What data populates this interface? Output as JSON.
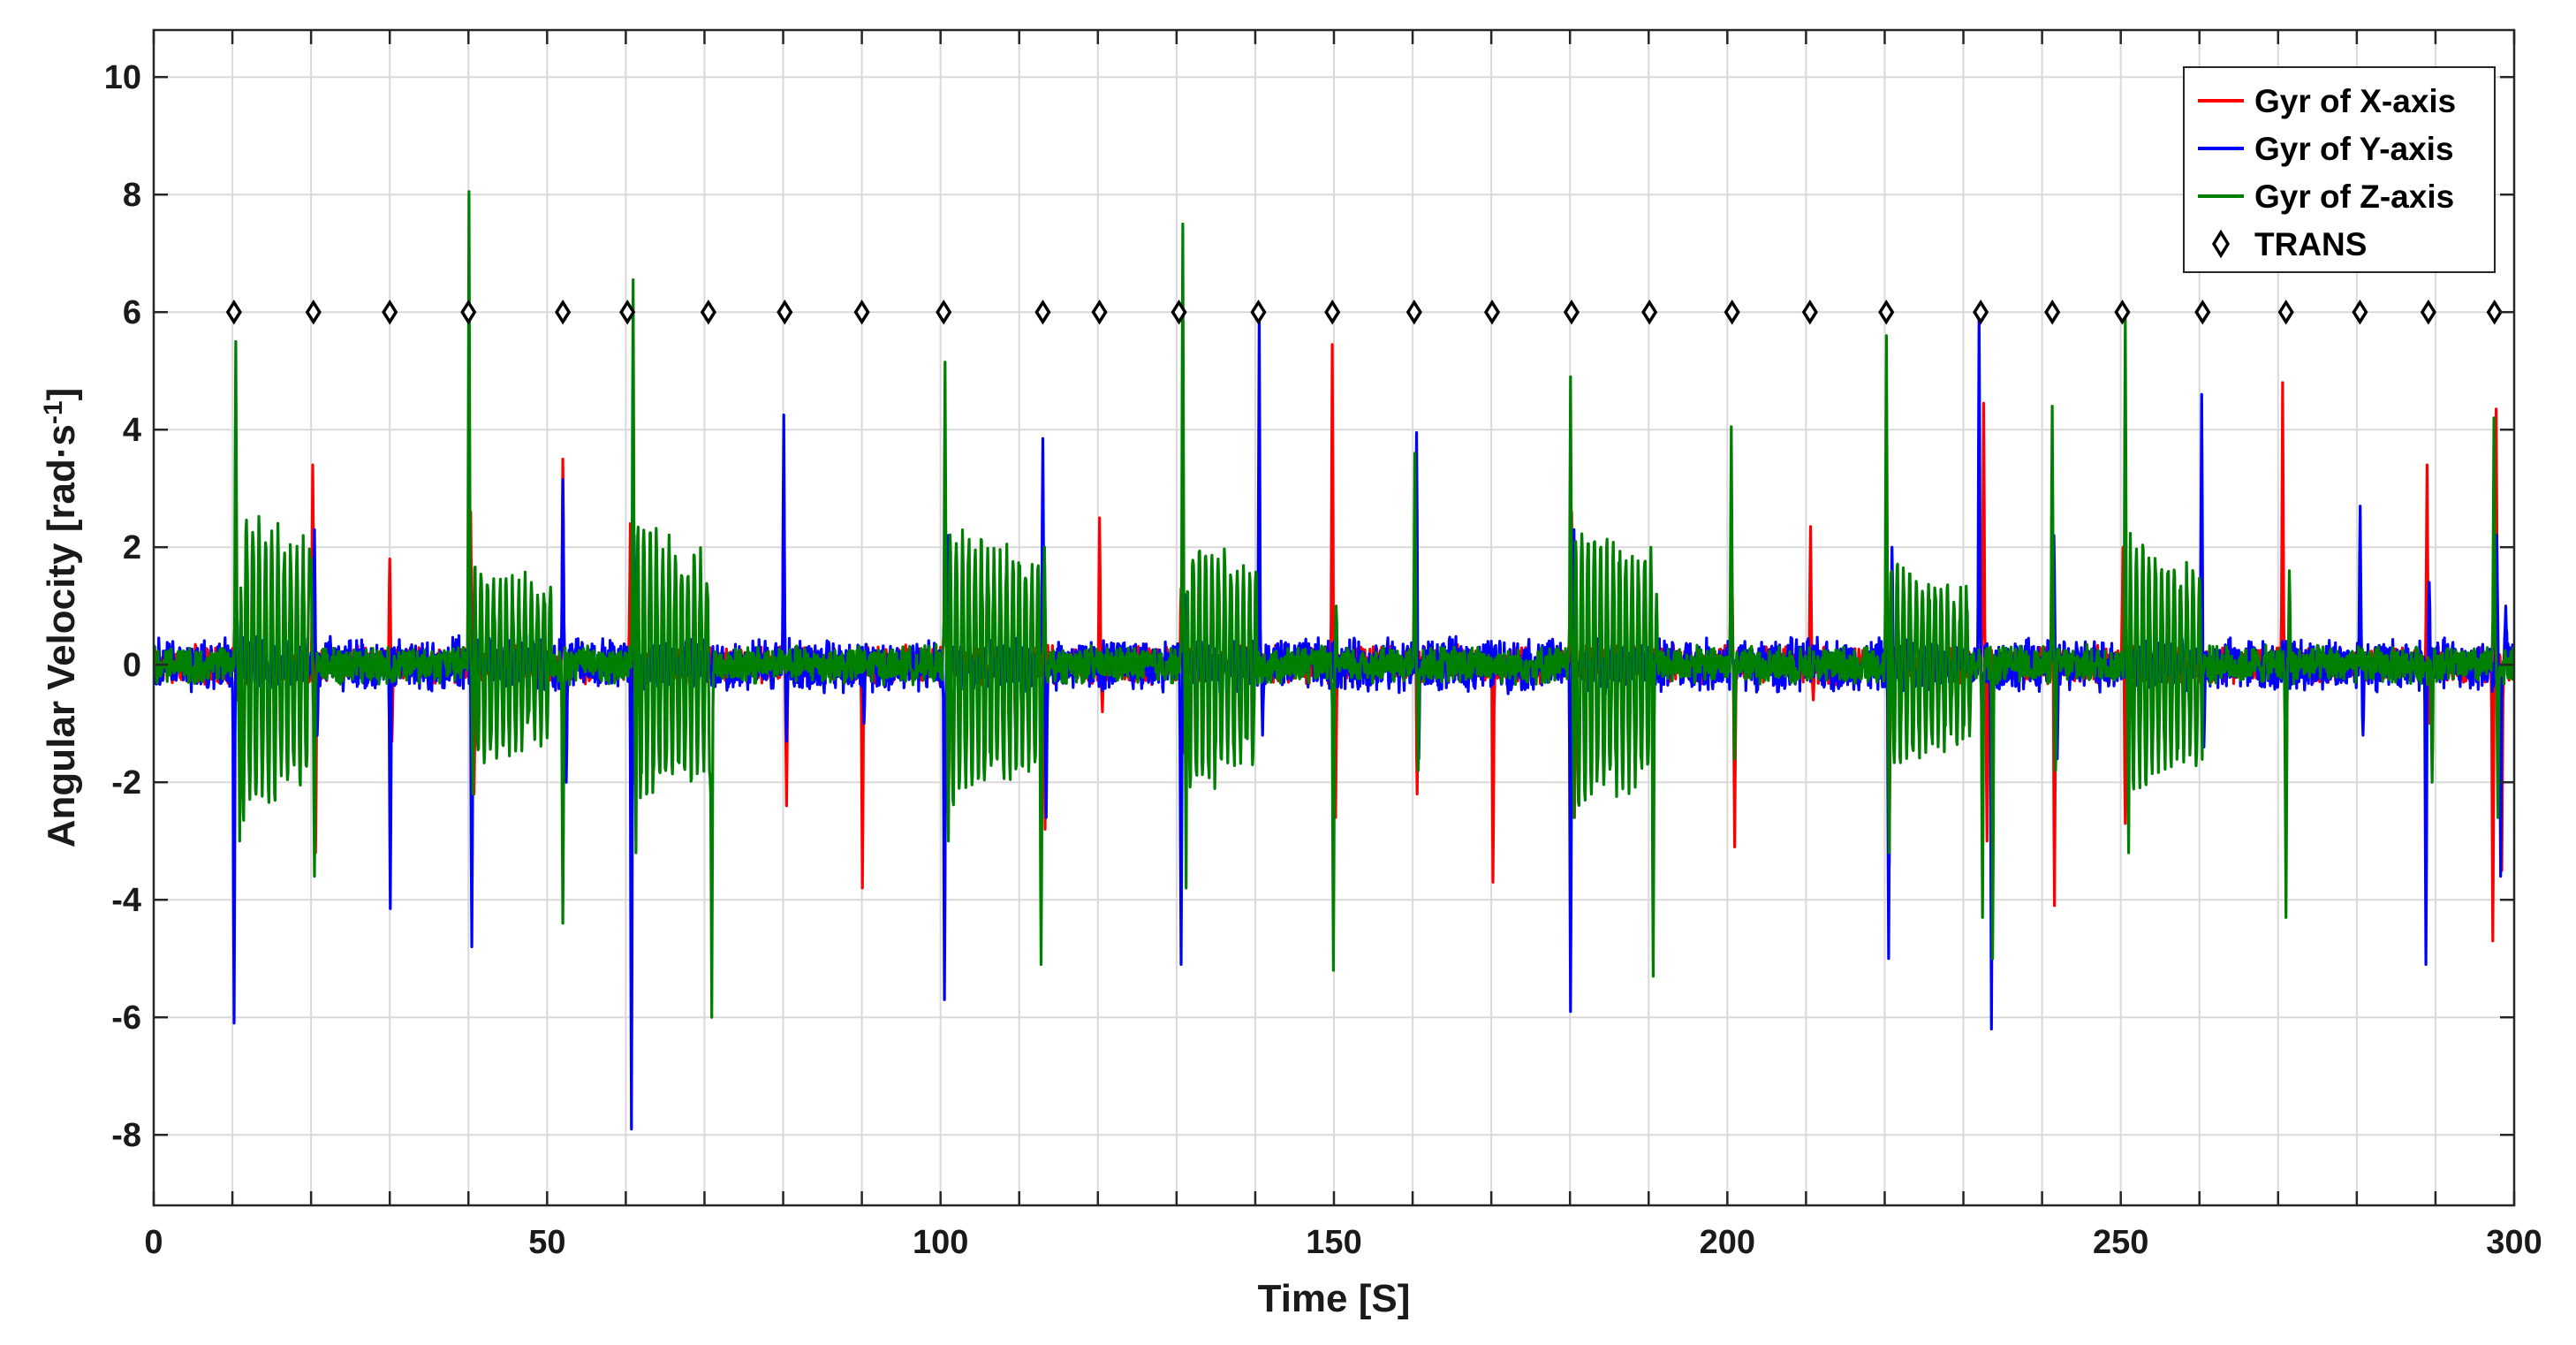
{
  "chart_data": {
    "type": "line",
    "title": "",
    "xlabel": "Time [S]",
    "ylabel": "Angular Velocity [rad·s",
    "ylabel_sup": "-1",
    "ylabel_suffix": "]",
    "xlim": [
      0,
      300
    ],
    "ylim": [
      -9.2,
      10.8
    ],
    "xticks": [
      0,
      10,
      20,
      30,
      40,
      50,
      60,
      70,
      80,
      90,
      100,
      110,
      120,
      130,
      140,
      150,
      160,
      170,
      180,
      190,
      200,
      210,
      220,
      230,
      240,
      250,
      260,
      270,
      280,
      290,
      300
    ],
    "xtick_labels": [
      "0",
      "50",
      "100",
      "150",
      "200",
      "250",
      "300"
    ],
    "xtick_label_values": [
      0,
      50,
      100,
      150,
      200,
      250,
      300
    ],
    "yticks": [
      -8,
      -6,
      -4,
      -2,
      0,
      2,
      4,
      6,
      8,
      10
    ],
    "ytick_labels": [
      "-8",
      "-6",
      "-4",
      "-2",
      "0",
      "2",
      "4",
      "6",
      "8",
      "10"
    ],
    "grid": true,
    "legend_position": "top-right",
    "series": [
      {
        "name": "Gyr of X-axis",
        "color": "#ff0000",
        "style": "line",
        "noise_amplitude": 0.35,
        "events": [
          {
            "x": 10.3,
            "y": 0.6
          },
          {
            "x": 10.6,
            "y": -0.6
          },
          {
            "x": 20.2,
            "y": 3.4
          },
          {
            "x": 20.6,
            "y": -3.2
          },
          {
            "x": 30.0,
            "y": 1.8
          },
          {
            "x": 30.3,
            "y": -1.3
          },
          {
            "x": 40.3,
            "y": 2.6
          },
          {
            "x": 40.7,
            "y": -2.2
          },
          {
            "x": 52.0,
            "y": 3.5
          },
          {
            "x": 52.4,
            "y": -1.6
          },
          {
            "x": 60.6,
            "y": 2.4
          },
          {
            "x": 61.0,
            "y": -2.0
          },
          {
            "x": 80.1,
            "y": 3.4
          },
          {
            "x": 80.4,
            "y": -2.4
          },
          {
            "x": 90.1,
            "y": -3.8
          },
          {
            "x": 100.6,
            "y": 3.0
          },
          {
            "x": 101.0,
            "y": -2.6
          },
          {
            "x": 113.0,
            "y": 2.1
          },
          {
            "x": 113.3,
            "y": -2.8
          },
          {
            "x": 120.2,
            "y": 2.5
          },
          {
            "x": 120.6,
            "y": -0.8
          },
          {
            "x": 130.6,
            "y": 1.3
          },
          {
            "x": 131.0,
            "y": -1.5
          },
          {
            "x": 149.8,
            "y": 5.45
          },
          {
            "x": 150.2,
            "y": -2.6
          },
          {
            "x": 160.3,
            "y": 1.8
          },
          {
            "x": 160.6,
            "y": -2.2
          },
          {
            "x": 170.2,
            "y": -3.7
          },
          {
            "x": 180.2,
            "y": 2.6
          },
          {
            "x": 180.6,
            "y": -2.6
          },
          {
            "x": 200.6,
            "y": 1.6
          },
          {
            "x": 200.9,
            "y": -3.1
          },
          {
            "x": 210.6,
            "y": 2.35
          },
          {
            "x": 210.9,
            "y": -0.6
          },
          {
            "x": 220.3,
            "y": 2.4
          },
          {
            "x": 220.6,
            "y": -3.4
          },
          {
            "x": 232.6,
            "y": 4.45
          },
          {
            "x": 233.0,
            "y": -3.0
          },
          {
            "x": 241.3,
            "y": 3.6
          },
          {
            "x": 241.6,
            "y": -4.1
          },
          {
            "x": 250.3,
            "y": 2.0
          },
          {
            "x": 250.6,
            "y": -2.7
          },
          {
            "x": 270.6,
            "y": 4.8
          },
          {
            "x": 271.0,
            "y": -2.6
          },
          {
            "x": 288.9,
            "y": 3.4
          },
          {
            "x": 289.3,
            "y": -1.0
          },
          {
            "x": 297.3,
            "y": -4.7
          },
          {
            "x": 297.7,
            "y": 4.35
          },
          {
            "x": 298.4,
            "y": -3.5
          }
        ]
      },
      {
        "name": "Gyr of Y-axis",
        "color": "#0000ff",
        "style": "line",
        "noise_amplitude": 0.5,
        "events": [
          {
            "x": 10.2,
            "y": -6.1
          },
          {
            "x": 10.6,
            "y": 0.9
          },
          {
            "x": 20.4,
            "y": 2.3
          },
          {
            "x": 20.8,
            "y": -1.2
          },
          {
            "x": 30.1,
            "y": -4.15
          },
          {
            "x": 40.4,
            "y": -4.8
          },
          {
            "x": 40.8,
            "y": 1.6
          },
          {
            "x": 52.0,
            "y": 3.15
          },
          {
            "x": 52.4,
            "y": -2.0
          },
          {
            "x": 60.7,
            "y": -7.9
          },
          {
            "x": 61.1,
            "y": 2.2
          },
          {
            "x": 80.1,
            "y": 4.25
          },
          {
            "x": 80.4,
            "y": -1.3
          },
          {
            "x": 90.3,
            "y": -1.0
          },
          {
            "x": 100.5,
            "y": -5.7
          },
          {
            "x": 100.9,
            "y": 2.2
          },
          {
            "x": 113.0,
            "y": 3.85
          },
          {
            "x": 113.4,
            "y": -2.6
          },
          {
            "x": 130.6,
            "y": -5.1
          },
          {
            "x": 131.0,
            "y": 1.2
          },
          {
            "x": 140.5,
            "y": 6.0
          },
          {
            "x": 140.9,
            "y": -1.2
          },
          {
            "x": 160.5,
            "y": 3.95
          },
          {
            "x": 160.8,
            "y": -1.6
          },
          {
            "x": 180.1,
            "y": -5.9
          },
          {
            "x": 180.5,
            "y": 2.3
          },
          {
            "x": 200.5,
            "y": 1.8
          },
          {
            "x": 200.9,
            "y": -1.2
          },
          {
            "x": 220.5,
            "y": -5.0
          },
          {
            "x": 220.9,
            "y": 2.0
          },
          {
            "x": 232.0,
            "y": 6.0
          },
          {
            "x": 232.4,
            "y": -1.6
          },
          {
            "x": 233.6,
            "y": -6.2
          },
          {
            "x": 241.5,
            "y": 2.2
          },
          {
            "x": 241.9,
            "y": -1.6
          },
          {
            "x": 260.3,
            "y": 4.6
          },
          {
            "x": 260.6,
            "y": -1.4
          },
          {
            "x": 280.4,
            "y": 2.7
          },
          {
            "x": 280.8,
            "y": -1.2
          },
          {
            "x": 288.8,
            "y": -5.1
          },
          {
            "x": 289.2,
            "y": 1.4
          },
          {
            "x": 297.8,
            "y": 2.2
          },
          {
            "x": 298.3,
            "y": -3.6
          },
          {
            "x": 298.9,
            "y": 1.0
          }
        ]
      },
      {
        "name": "Gyr of Z-axis",
        "color": "#008000",
        "style": "line",
        "noise_amplitude": 0.35,
        "events": [
          {
            "x": 10.4,
            "y": 5.5
          },
          {
            "x": 10.9,
            "y": -3.0
          },
          {
            "x": 20.0,
            "y": 1.8
          },
          {
            "x": 20.4,
            "y": -3.6
          },
          {
            "x": 40.1,
            "y": 8.05
          },
          {
            "x": 40.6,
            "y": -2.2
          },
          {
            "x": 52.0,
            "y": -4.4
          },
          {
            "x": 60.9,
            "y": 6.55
          },
          {
            "x": 61.3,
            "y": -3.2
          },
          {
            "x": 70.9,
            "y": -6.0
          },
          {
            "x": 100.6,
            "y": 5.15
          },
          {
            "x": 101.0,
            "y": -3.0
          },
          {
            "x": 112.8,
            "y": -5.1
          },
          {
            "x": 113.2,
            "y": 2.0
          },
          {
            "x": 130.8,
            "y": 7.5
          },
          {
            "x": 131.2,
            "y": -3.8
          },
          {
            "x": 149.9,
            "y": -5.2
          },
          {
            "x": 150.3,
            "y": 1.0
          },
          {
            "x": 160.3,
            "y": 3.6
          },
          {
            "x": 160.7,
            "y": -1.8
          },
          {
            "x": 180.1,
            "y": 4.9
          },
          {
            "x": 180.5,
            "y": -2.6
          },
          {
            "x": 190.6,
            "y": -5.3
          },
          {
            "x": 191.0,
            "y": 1.2
          },
          {
            "x": 200.5,
            "y": 4.05
          },
          {
            "x": 200.9,
            "y": -1.6
          },
          {
            "x": 220.2,
            "y": 5.6
          },
          {
            "x": 220.6,
            "y": -3.2
          },
          {
            "x": 232.4,
            "y": -4.3
          },
          {
            "x": 233.7,
            "y": -5.0
          },
          {
            "x": 241.3,
            "y": 4.4
          },
          {
            "x": 241.7,
            "y": -1.8
          },
          {
            "x": 250.6,
            "y": 5.95
          },
          {
            "x": 251.0,
            "y": -3.2
          },
          {
            "x": 271.0,
            "y": -4.3
          },
          {
            "x": 271.4,
            "y": 1.6
          },
          {
            "x": 289.6,
            "y": -2.0
          },
          {
            "x": 297.4,
            "y": 4.2
          },
          {
            "x": 297.9,
            "y": -2.6
          }
        ],
        "oscillations": [
          {
            "start": 10.8,
            "end": 20.0,
            "amplitude": 2.9
          },
          {
            "start": 40.6,
            "end": 50.5,
            "amplitude": 1.8
          },
          {
            "start": 61.3,
            "end": 71.0,
            "amplitude": 2.6
          },
          {
            "start": 101.0,
            "end": 112.8,
            "amplitude": 2.5
          },
          {
            "start": 131.1,
            "end": 140.2,
            "amplitude": 2.4
          },
          {
            "start": 180.5,
            "end": 190.6,
            "amplitude": 2.6
          },
          {
            "start": 220.6,
            "end": 231.0,
            "amplitude": 1.8
          },
          {
            "start": 251.0,
            "end": 260.4,
            "amplitude": 2.2
          }
        ]
      },
      {
        "name": "TRANS",
        "color": "#000000",
        "style": "marker",
        "marker": "diamond-open",
        "y": 6,
        "x": [
          10.2,
          20.3,
          30.0,
          40.0,
          52.0,
          60.2,
          70.5,
          80.2,
          90.0,
          100.4,
          113.0,
          120.2,
          130.3,
          140.4,
          149.8,
          160.2,
          170.1,
          180.2,
          190.1,
          200.6,
          210.5,
          220.2,
          232.2,
          241.3,
          250.2,
          260.4,
          271.0,
          280.4,
          289.1,
          297.5
        ]
      }
    ]
  }
}
